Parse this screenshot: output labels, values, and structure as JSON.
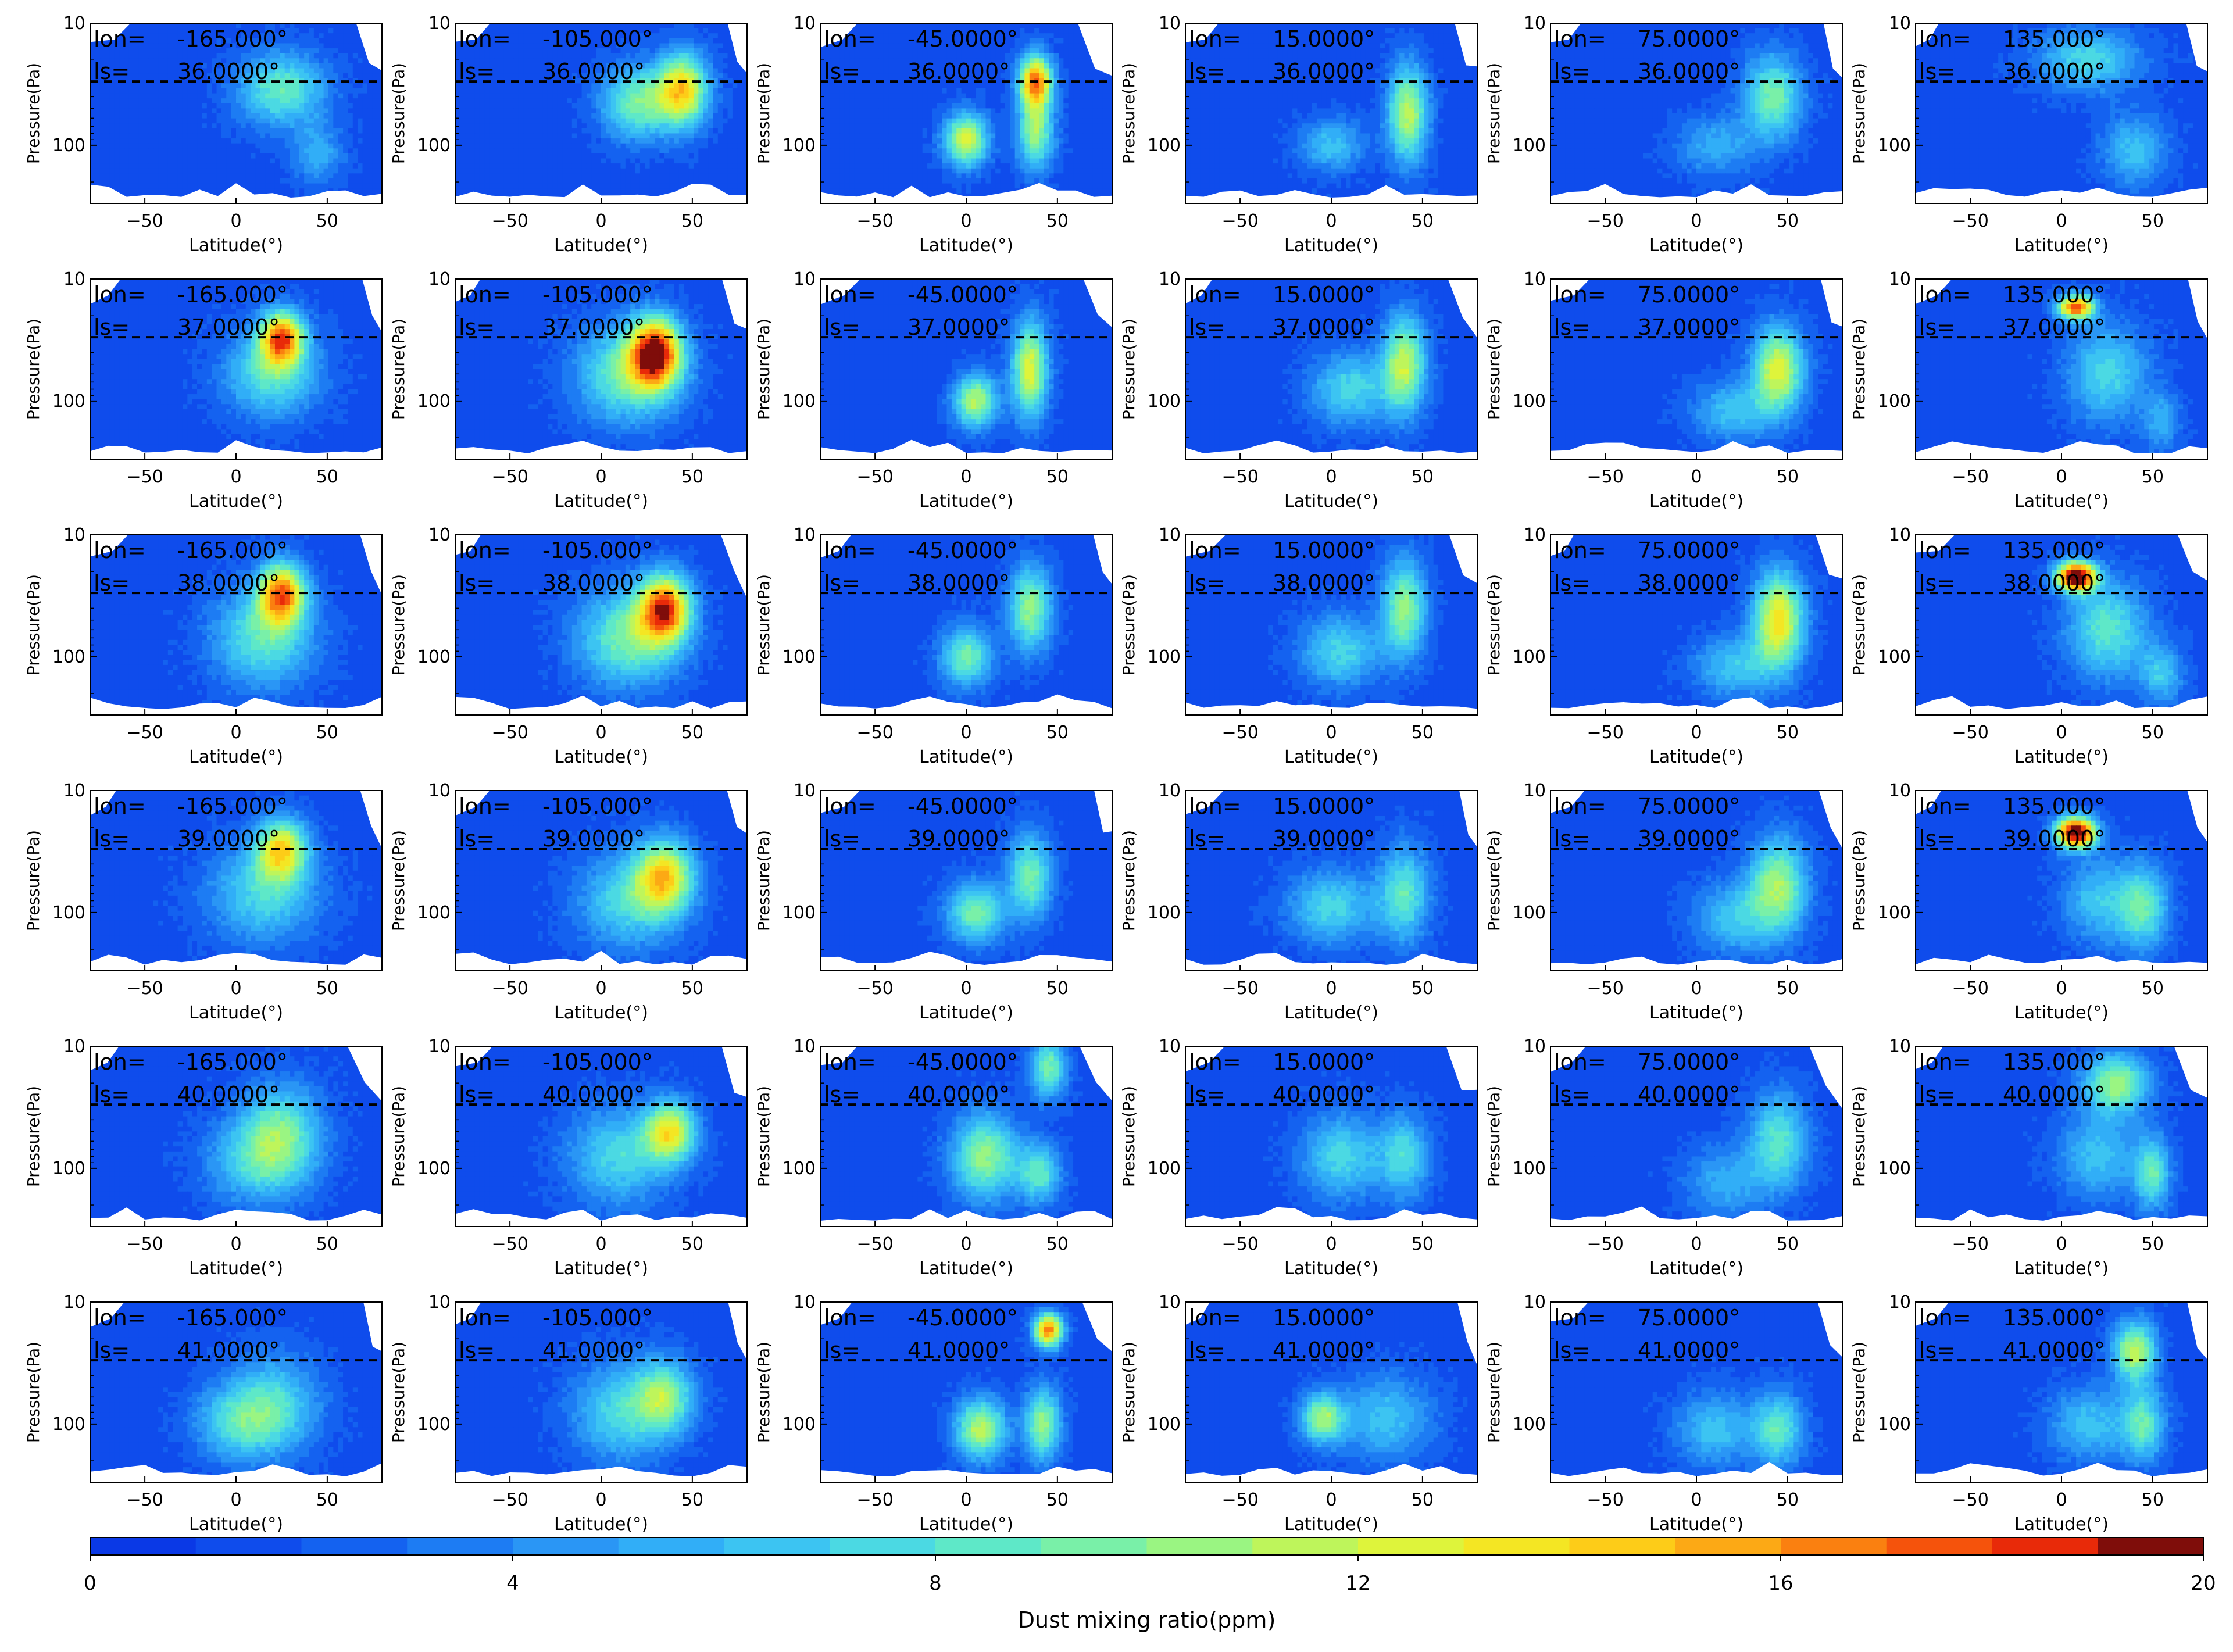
{
  "figure": {
    "xlabel": "Latitude(°)",
    "ylabel": "Pressure(Pa)",
    "x_ticks": [
      -50,
      0,
      50
    ],
    "y_ticks": [
      10,
      100
    ],
    "xlim": [
      -80,
      80
    ],
    "y_scale": "log",
    "dashed_level_pa": 30,
    "lon_label": "lon=",
    "ls_label": "ls=",
    "rows_ls": [
      "36.0000°",
      "37.0000°",
      "38.0000°",
      "39.0000°",
      "40.0000°",
      "41.0000°"
    ],
    "cols_lon": [
      "-165.000°",
      "-105.000°",
      "-45.0000°",
      "15.0000°",
      "75.0000°",
      "135.000°"
    ]
  },
  "colorbar": {
    "label": "Dust mixing ratio(ppm)",
    "ticks": [
      0,
      4,
      8,
      12,
      16,
      20
    ],
    "min": 0,
    "max": 20,
    "levels": 20,
    "colors": [
      "#0a39e6",
      "#0f4cec",
      "#1462f0",
      "#1d7cf3",
      "#2a96f5",
      "#31aef7",
      "#3cc4f2",
      "#4bd9e3",
      "#5ee8c8",
      "#79f0a8",
      "#9af582",
      "#bef55b",
      "#def43b",
      "#f4e623",
      "#fdcc18",
      "#fca915",
      "#fa8010",
      "#f5530c",
      "#e82a09",
      "#7f0d0a"
    ]
  },
  "chart_data": {
    "type": "heatmap",
    "subtype": "filled contour grid (6 rows × 6 columns)",
    "x_unit": "latitude (°)",
    "y_unit": "pressure (Pa), log scale, increasing downward",
    "xlim": [
      -80,
      80
    ],
    "ylim": [
      300,
      10
    ],
    "value_unit": "ppm",
    "clim": [
      0,
      20
    ],
    "background_level_ppm": 1.5,
    "panels": [
      {
        "lon": "-165.000°",
        "ls": "36.0000°",
        "peaks": [
          {
            "lat": 25,
            "p": 35,
            "w": 24,
            "h": 0.3,
            "v": 7.5
          },
          {
            "lat": 45,
            "p": 120,
            "w": 14,
            "h": 0.25,
            "v": 4
          }
        ]
      },
      {
        "lon": "-105.000°",
        "ls": "36.0000°",
        "peaks": [
          {
            "lat": 45,
            "p": 35,
            "w": 14,
            "h": 0.3,
            "v": 12
          },
          {
            "lat": 20,
            "p": 45,
            "w": 20,
            "h": 0.3,
            "v": 8
          }
        ]
      },
      {
        "lon": "-45.0000°",
        "ls": "36.0000°",
        "peaks": [
          {
            "lat": 38,
            "p": 30,
            "w": 9,
            "h": 0.22,
            "v": 15
          },
          {
            "lat": 38,
            "p": 80,
            "w": 10,
            "h": 0.3,
            "v": 9
          },
          {
            "lat": 0,
            "p": 90,
            "w": 12,
            "h": 0.22,
            "v": 11
          }
        ]
      },
      {
        "lon": "15.0000°",
        "ls": "36.0000°",
        "peaks": [
          {
            "lat": 42,
            "p": 55,
            "w": 11,
            "h": 0.4,
            "v": 10
          },
          {
            "lat": 0,
            "p": 100,
            "w": 18,
            "h": 0.22,
            "v": 5
          }
        ]
      },
      {
        "lon": "75.0000°",
        "ls": "36.0000°",
        "peaks": [
          {
            "lat": 42,
            "p": 40,
            "w": 16,
            "h": 0.35,
            "v": 8
          },
          {
            "lat": 10,
            "p": 100,
            "w": 22,
            "h": 0.25,
            "v": 4
          }
        ]
      },
      {
        "lon": "135.000°",
        "ls": "36.0000°",
        "peaks": [
          {
            "lat": 15,
            "p": 20,
            "w": 28,
            "h": 0.25,
            "v": 6
          },
          {
            "lat": 40,
            "p": 110,
            "w": 18,
            "h": 0.3,
            "v": 5
          }
        ]
      },
      {
        "lon": "-165.000°",
        "ls": "37.0000°",
        "peaks": [
          {
            "lat": 25,
            "p": 30,
            "w": 12,
            "h": 0.22,
            "v": 14
          },
          {
            "lat": 20,
            "p": 60,
            "w": 26,
            "h": 0.35,
            "v": 7
          }
        ]
      },
      {
        "lon": "-105.000°",
        "ls": "37.0000°",
        "peaks": [
          {
            "lat": 30,
            "p": 40,
            "w": 14,
            "h": 0.28,
            "v": 16
          },
          {
            "lat": 15,
            "p": 60,
            "w": 28,
            "h": 0.4,
            "v": 8
          }
        ]
      },
      {
        "lon": "-45.0000°",
        "ls": "37.0000°",
        "peaks": [
          {
            "lat": 35,
            "p": 55,
            "w": 10,
            "h": 0.4,
            "v": 11
          },
          {
            "lat": 5,
            "p": 100,
            "w": 12,
            "h": 0.22,
            "v": 10
          }
        ]
      },
      {
        "lon": "15.0000°",
        "ls": "37.0000°",
        "peaks": [
          {
            "lat": 40,
            "p": 50,
            "w": 12,
            "h": 0.4,
            "v": 10
          },
          {
            "lat": 10,
            "p": 80,
            "w": 22,
            "h": 0.3,
            "v": 6
          }
        ]
      },
      {
        "lon": "75.0000°",
        "ls": "37.0000°",
        "peaks": [
          {
            "lat": 45,
            "p": 55,
            "w": 14,
            "h": 0.35,
            "v": 11
          },
          {
            "lat": 20,
            "p": 120,
            "w": 22,
            "h": 0.25,
            "v": 5
          }
        ]
      },
      {
        "lon": "135.000°",
        "ls": "37.0000°",
        "peaks": [
          {
            "lat": 8,
            "p": 17,
            "w": 10,
            "h": 0.1,
            "v": 16
          },
          {
            "lat": 25,
            "p": 60,
            "w": 22,
            "h": 0.4,
            "v": 6
          },
          {
            "lat": 55,
            "p": 150,
            "w": 10,
            "h": 0.25,
            "v": 4
          }
        ]
      },
      {
        "lon": "-165.000°",
        "ls": "38.0000°",
        "peaks": [
          {
            "lat": 25,
            "p": 30,
            "w": 13,
            "h": 0.25,
            "v": 14
          },
          {
            "lat": 15,
            "p": 70,
            "w": 28,
            "h": 0.4,
            "v": 7
          }
        ]
      },
      {
        "lon": "-105.000°",
        "ls": "38.0000°",
        "peaks": [
          {
            "lat": 35,
            "p": 40,
            "w": 14,
            "h": 0.28,
            "v": 15
          },
          {
            "lat": 15,
            "p": 70,
            "w": 28,
            "h": 0.4,
            "v": 8
          }
        ]
      },
      {
        "lon": "-45.0000°",
        "ls": "38.0000°",
        "peaks": [
          {
            "lat": 35,
            "p": 40,
            "w": 12,
            "h": 0.35,
            "v": 9
          },
          {
            "lat": 0,
            "p": 100,
            "w": 14,
            "h": 0.25,
            "v": 8
          }
        ]
      },
      {
        "lon": "15.0000°",
        "ls": "38.0000°",
        "peaks": [
          {
            "lat": 40,
            "p": 40,
            "w": 12,
            "h": 0.4,
            "v": 9
          },
          {
            "lat": 5,
            "p": 90,
            "w": 22,
            "h": 0.3,
            "v": 6
          }
        ]
      },
      {
        "lon": "75.0000°",
        "ls": "38.0000°",
        "peaks": [
          {
            "lat": 45,
            "p": 50,
            "w": 14,
            "h": 0.4,
            "v": 12
          },
          {
            "lat": 20,
            "p": 120,
            "w": 22,
            "h": 0.25,
            "v": 5
          }
        ]
      },
      {
        "lon": "135.000°",
        "ls": "38.0000°",
        "peaks": [
          {
            "lat": 8,
            "p": 22,
            "w": 11,
            "h": 0.12,
            "v": 20
          },
          {
            "lat": 25,
            "p": 60,
            "w": 22,
            "h": 0.4,
            "v": 7
          },
          {
            "lat": 55,
            "p": 140,
            "w": 12,
            "h": 0.25,
            "v": 5
          }
        ]
      },
      {
        "lon": "-165.000°",
        "ls": "39.0000°",
        "peaks": [
          {
            "lat": 25,
            "p": 30,
            "w": 14,
            "h": 0.25,
            "v": 11
          },
          {
            "lat": 15,
            "p": 70,
            "w": 30,
            "h": 0.4,
            "v": 6
          }
        ]
      },
      {
        "lon": "-105.000°",
        "ls": "39.0000°",
        "peaks": [
          {
            "lat": 35,
            "p": 50,
            "w": 16,
            "h": 0.3,
            "v": 11
          },
          {
            "lat": 15,
            "p": 80,
            "w": 28,
            "h": 0.4,
            "v": 6
          }
        ]
      },
      {
        "lon": "-45.0000°",
        "ls": "39.0000°",
        "peaks": [
          {
            "lat": 35,
            "p": 50,
            "w": 12,
            "h": 0.35,
            "v": 8
          },
          {
            "lat": 5,
            "p": 100,
            "w": 16,
            "h": 0.25,
            "v": 8
          }
        ]
      },
      {
        "lon": "15.0000°",
        "ls": "39.0000°",
        "peaks": [
          {
            "lat": 40,
            "p": 70,
            "w": 14,
            "h": 0.4,
            "v": 7
          },
          {
            "lat": 0,
            "p": 90,
            "w": 24,
            "h": 0.3,
            "v": 6
          }
        ]
      },
      {
        "lon": "75.0000°",
        "ls": "39.0000°",
        "peaks": [
          {
            "lat": 45,
            "p": 60,
            "w": 16,
            "h": 0.4,
            "v": 9
          },
          {
            "lat": 20,
            "p": 110,
            "w": 22,
            "h": 0.3,
            "v": 5
          }
        ]
      },
      {
        "lon": "135.000°",
        "ls": "39.0000°",
        "peaks": [
          {
            "lat": 8,
            "p": 22,
            "w": 11,
            "h": 0.13,
            "v": 20
          },
          {
            "lat": 45,
            "p": 90,
            "w": 14,
            "h": 0.35,
            "v": 7
          },
          {
            "lat": 20,
            "p": 80,
            "w": 20,
            "h": 0.35,
            "v": 5
          }
        ]
      },
      {
        "lon": "-165.000°",
        "ls": "40.0000°",
        "peaks": [
          {
            "lat": 25,
            "p": 50,
            "w": 22,
            "h": 0.4,
            "v": 7
          },
          {
            "lat": 10,
            "p": 90,
            "w": 28,
            "h": 0.35,
            "v": 5
          }
        ]
      },
      {
        "lon": "-105.000°",
        "ls": "40.0000°",
        "peaks": [
          {
            "lat": 38,
            "p": 50,
            "w": 14,
            "h": 0.25,
            "v": 11
          },
          {
            "lat": 10,
            "p": 80,
            "w": 28,
            "h": 0.4,
            "v": 6
          }
        ]
      },
      {
        "lon": "-45.0000°",
        "ls": "40.0000°",
        "peaks": [
          {
            "lat": 10,
            "p": 80,
            "w": 18,
            "h": 0.35,
            "v": 9
          },
          {
            "lat": 45,
            "p": 15,
            "w": 10,
            "h": 0.25,
            "v": 8
          },
          {
            "lat": 40,
            "p": 110,
            "w": 12,
            "h": 0.25,
            "v": 7
          }
        ]
      },
      {
        "lon": "15.0000°",
        "ls": "40.0000°",
        "peaks": [
          {
            "lat": 5,
            "p": 80,
            "w": 22,
            "h": 0.35,
            "v": 6
          },
          {
            "lat": 40,
            "p": 80,
            "w": 14,
            "h": 0.35,
            "v": 6
          }
        ]
      },
      {
        "lon": "75.0000°",
        "ls": "40.0000°",
        "peaks": [
          {
            "lat": 45,
            "p": 60,
            "w": 16,
            "h": 0.4,
            "v": 7
          },
          {
            "lat": 15,
            "p": 130,
            "w": 22,
            "h": 0.3,
            "v": 4
          }
        ]
      },
      {
        "lon": "135.000°",
        "ls": "40.0000°",
        "peaks": [
          {
            "lat": 30,
            "p": 20,
            "w": 18,
            "h": 0.25,
            "v": 9
          },
          {
            "lat": 50,
            "p": 110,
            "w": 10,
            "h": 0.3,
            "v": 7
          },
          {
            "lat": 20,
            "p": 80,
            "w": 22,
            "h": 0.35,
            "v": 5
          }
        ]
      },
      {
        "lon": "-165.000°",
        "ls": "41.0000°",
        "peaks": [
          {
            "lat": 20,
            "p": 70,
            "w": 26,
            "h": 0.4,
            "v": 6
          },
          {
            "lat": 0,
            "p": 100,
            "w": 24,
            "h": 0.3,
            "v": 5
          }
        ]
      },
      {
        "lon": "-105.000°",
        "ls": "41.0000°",
        "peaks": [
          {
            "lat": 35,
            "p": 60,
            "w": 16,
            "h": 0.3,
            "v": 8
          },
          {
            "lat": 10,
            "p": 80,
            "w": 26,
            "h": 0.4,
            "v": 6
          }
        ]
      },
      {
        "lon": "-45.0000°",
        "ls": "41.0000°",
        "peaks": [
          {
            "lat": 45,
            "p": 17,
            "w": 8,
            "h": 0.14,
            "v": 15
          },
          {
            "lat": 8,
            "p": 110,
            "w": 14,
            "h": 0.25,
            "v": 10
          },
          {
            "lat": 42,
            "p": 100,
            "w": 10,
            "h": 0.3,
            "v": 9
          }
        ]
      },
      {
        "lon": "15.0000°",
        "ls": "41.0000°",
        "peaks": [
          {
            "lat": -5,
            "p": 90,
            "w": 12,
            "h": 0.2,
            "v": 9
          },
          {
            "lat": 30,
            "p": 90,
            "w": 26,
            "h": 0.35,
            "v": 5
          }
        ]
      },
      {
        "lon": "75.0000°",
        "ls": "41.0000°",
        "peaks": [
          {
            "lat": 45,
            "p": 110,
            "w": 14,
            "h": 0.3,
            "v": 7
          },
          {
            "lat": 10,
            "p": 110,
            "w": 22,
            "h": 0.3,
            "v": 5
          }
        ]
      },
      {
        "lon": "135.000°",
        "ls": "41.0000°",
        "peaks": [
          {
            "lat": 40,
            "p": 25,
            "w": 12,
            "h": 0.25,
            "v": 10
          },
          {
            "lat": 45,
            "p": 100,
            "w": 12,
            "h": 0.3,
            "v": 7
          },
          {
            "lat": 15,
            "p": 100,
            "w": 22,
            "h": 0.3,
            "v": 5
          }
        ]
      }
    ]
  }
}
